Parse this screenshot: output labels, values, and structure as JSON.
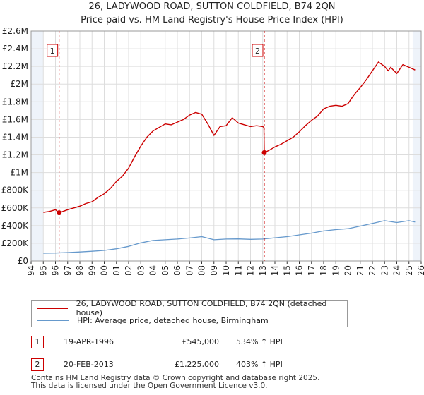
{
  "title_line1": "26, LADYWOOD ROAD, SUTTON COLDFIELD, B74 2QN",
  "title_line2": "Price paid vs. HM Land Registry's House Price Index (HPI)",
  "legend": {
    "property_label": "26, LADYWOOD ROAD, SUTTON COLDFIELD, B74 2QN (detached house)",
    "hpi_label": "HPI: Average price, detached house, Birmingham"
  },
  "sales": [
    {
      "num": "1",
      "date": "19-APR-1996",
      "price": "£545,000",
      "hpi": "534% ↑ HPI"
    },
    {
      "num": "2",
      "date": "20-FEB-2013",
      "price": "£1,225,000",
      "hpi": "403% ↑ HPI"
    }
  ],
  "footer": {
    "line1": "Contains HM Land Registry data © Crown copyright and database right 2025.",
    "line2": "This data is licensed under the Open Government Licence v3.0."
  },
  "colors": {
    "property": "#cc0000",
    "hpi": "#6699cc",
    "grid": "#dddddd",
    "shade": "#eef3fa"
  },
  "chart_data": {
    "type": "line",
    "xlim": [
      1994,
      2026
    ],
    "ylim": [
      0,
      2600000
    ],
    "y_ticks": [
      0,
      200000,
      400000,
      600000,
      800000,
      1000000,
      1200000,
      1400000,
      1600000,
      1800000,
      2000000,
      2200000,
      2400000,
      2600000
    ],
    "y_tick_labels": [
      "£0",
      "£200K",
      "£400K",
      "£600K",
      "£800K",
      "£1M",
      "£1.2M",
      "£1.4M",
      "£1.6M",
      "£1.8M",
      "£2M",
      "£2.2M",
      "£2.4M",
      "£2.6M"
    ],
    "x_ticks": [
      1994,
      1995,
      1996,
      1997,
      1998,
      1999,
      2000,
      2001,
      2002,
      2003,
      2004,
      2005,
      2006,
      2007,
      2008,
      2009,
      2010,
      2011,
      2012,
      2013,
      2014,
      2015,
      2016,
      2017,
      2018,
      2019,
      2020,
      2021,
      2022,
      2023,
      2024,
      2025,
      2026
    ],
    "shaded_ranges": [
      [
        1994,
        1995
      ],
      [
        2025.3,
        2026
      ]
    ],
    "markers": [
      {
        "label": "1",
        "x": 1996.3,
        "y": 545000
      },
      {
        "label": "2",
        "x": 2013.13,
        "y": 1225000
      }
    ],
    "series": [
      {
        "name": "26, LADYWOOD ROAD, SUTTON COLDFIELD, B74 2QN (detached house)",
        "color": "#cc0000",
        "x": [
          1995.0,
          1995.5,
          1996.0,
          1996.3,
          1996.6,
          1997.0,
          1997.5,
          1998.0,
          1998.5,
          1999.0,
          1999.5,
          2000.0,
          2000.5,
          2001.0,
          2001.5,
          2002.0,
          2002.5,
          2003.0,
          2003.5,
          2004.0,
          2004.5,
          2005.0,
          2005.5,
          2006.0,
          2006.5,
          2007.0,
          2007.5,
          2008.0,
          2008.5,
          2009.0,
          2009.5,
          2010.0,
          2010.5,
          2011.0,
          2011.5,
          2012.0,
          2012.5,
          2013.0,
          2013.1,
          2013.13,
          2013.5,
          2014.0,
          2014.5,
          2015.0,
          2015.5,
          2016.0,
          2016.5,
          2017.0,
          2017.5,
          2018.0,
          2018.5,
          2019.0,
          2019.5,
          2020.0,
          2020.5,
          2021.0,
          2021.5,
          2022.0,
          2022.5,
          2023.0,
          2023.3,
          2023.5,
          2024.0,
          2024.5,
          2025.0,
          2025.5
        ],
        "values": [
          550000,
          560000,
          580000,
          545000,
          560000,
          580000,
          600000,
          620000,
          650000,
          670000,
          720000,
          760000,
          820000,
          900000,
          960000,
          1050000,
          1180000,
          1300000,
          1400000,
          1470000,
          1510000,
          1550000,
          1540000,
          1570000,
          1600000,
          1650000,
          1680000,
          1660000,
          1550000,
          1420000,
          1520000,
          1530000,
          1620000,
          1560000,
          1540000,
          1520000,
          1530000,
          1520000,
          1510000,
          1225000,
          1250000,
          1290000,
          1320000,
          1360000,
          1400000,
          1460000,
          1530000,
          1590000,
          1640000,
          1720000,
          1750000,
          1760000,
          1750000,
          1780000,
          1880000,
          1960000,
          2050000,
          2150000,
          2250000,
          2200000,
          2150000,
          2190000,
          2120000,
          2220000,
          2190000,
          2160000
        ]
      },
      {
        "name": "HPI: Average price, detached house, Birmingham",
        "color": "#6699cc",
        "x": [
          1995.0,
          1996.0,
          1997.0,
          1998.0,
          1999.0,
          2000.0,
          2001.0,
          2002.0,
          2003.0,
          2004.0,
          2005.0,
          2006.0,
          2007.0,
          2008.0,
          2009.0,
          2010.0,
          2011.0,
          2012.0,
          2013.0,
          2014.0,
          2015.0,
          2016.0,
          2017.0,
          2018.0,
          2019.0,
          2020.0,
          2021.0,
          2022.0,
          2023.0,
          2024.0,
          2025.0,
          2025.5
        ],
        "values": [
          88000,
          90000,
          96000,
          102000,
          110000,
          120000,
          138000,
          165000,
          205000,
          232000,
          240000,
          248000,
          260000,
          275000,
          240000,
          248000,
          250000,
          245000,
          248000,
          262000,
          275000,
          295000,
          315000,
          340000,
          355000,
          365000,
          395000,
          425000,
          455000,
          435000,
          455000,
          440000
        ]
      }
    ]
  }
}
